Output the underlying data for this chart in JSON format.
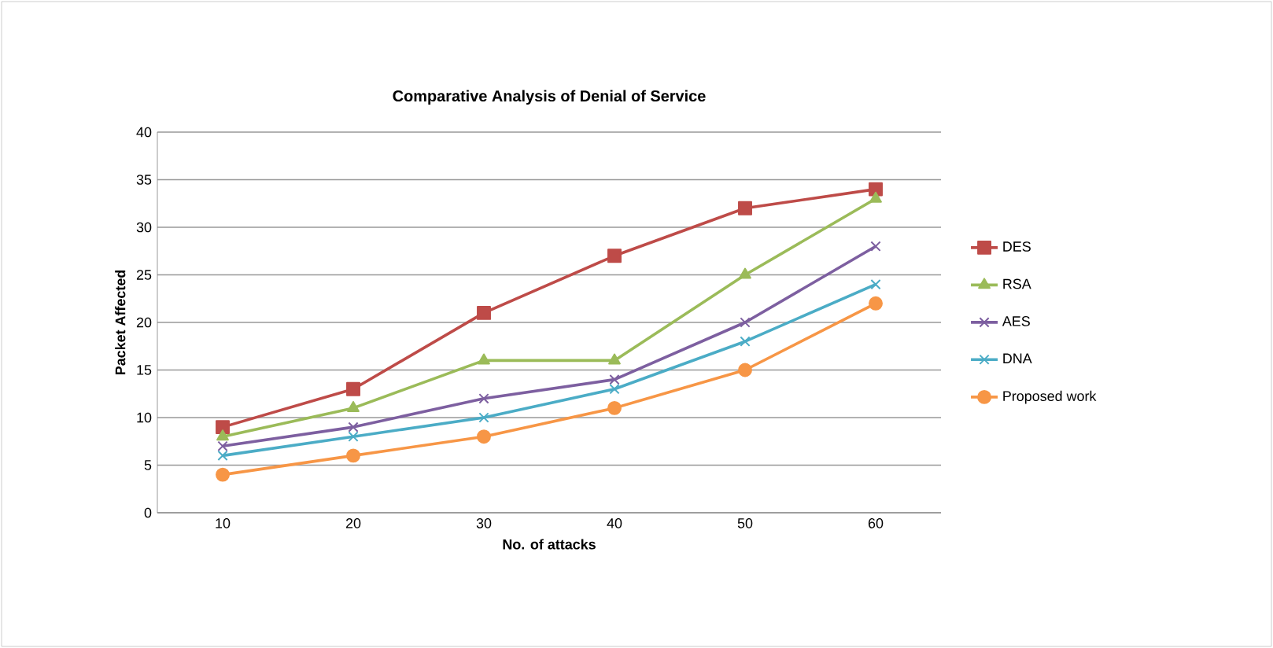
{
  "chart_data": {
    "type": "line",
    "title": "Comparative  Analysis of Denial of Service",
    "xlabel": "No. of attacks",
    "ylabel": "Packet Affected",
    "categories": [
      "10",
      "20",
      "30",
      "40",
      "50",
      "60"
    ],
    "series": [
      {
        "name": "DES",
        "color": "#be4b48",
        "marker": "square",
        "values": [
          9,
          13,
          21,
          27,
          32,
          34
        ]
      },
      {
        "name": "RSA",
        "color": "#9bbb59",
        "marker": "triangle",
        "values": [
          8,
          11,
          16,
          16,
          25,
          33
        ]
      },
      {
        "name": "AES",
        "color": "#7d5fa0",
        "marker": "cross",
        "values": [
          7,
          9,
          12,
          14,
          20,
          28
        ]
      },
      {
        "name": "DNA",
        "color": "#4bacc6",
        "marker": "cross",
        "values": [
          6,
          8,
          10,
          13,
          18,
          24
        ]
      },
      {
        "name": "Proposed work",
        "color": "#f79646",
        "marker": "circle",
        "values": [
          4,
          6,
          8,
          11,
          15,
          22
        ]
      }
    ],
    "ylim": [
      0,
      40
    ],
    "yticks": [
      0,
      5,
      10,
      15,
      20,
      25,
      30,
      35,
      40
    ],
    "grid": "y",
    "legend": "right",
    "line_style": "solid"
  }
}
